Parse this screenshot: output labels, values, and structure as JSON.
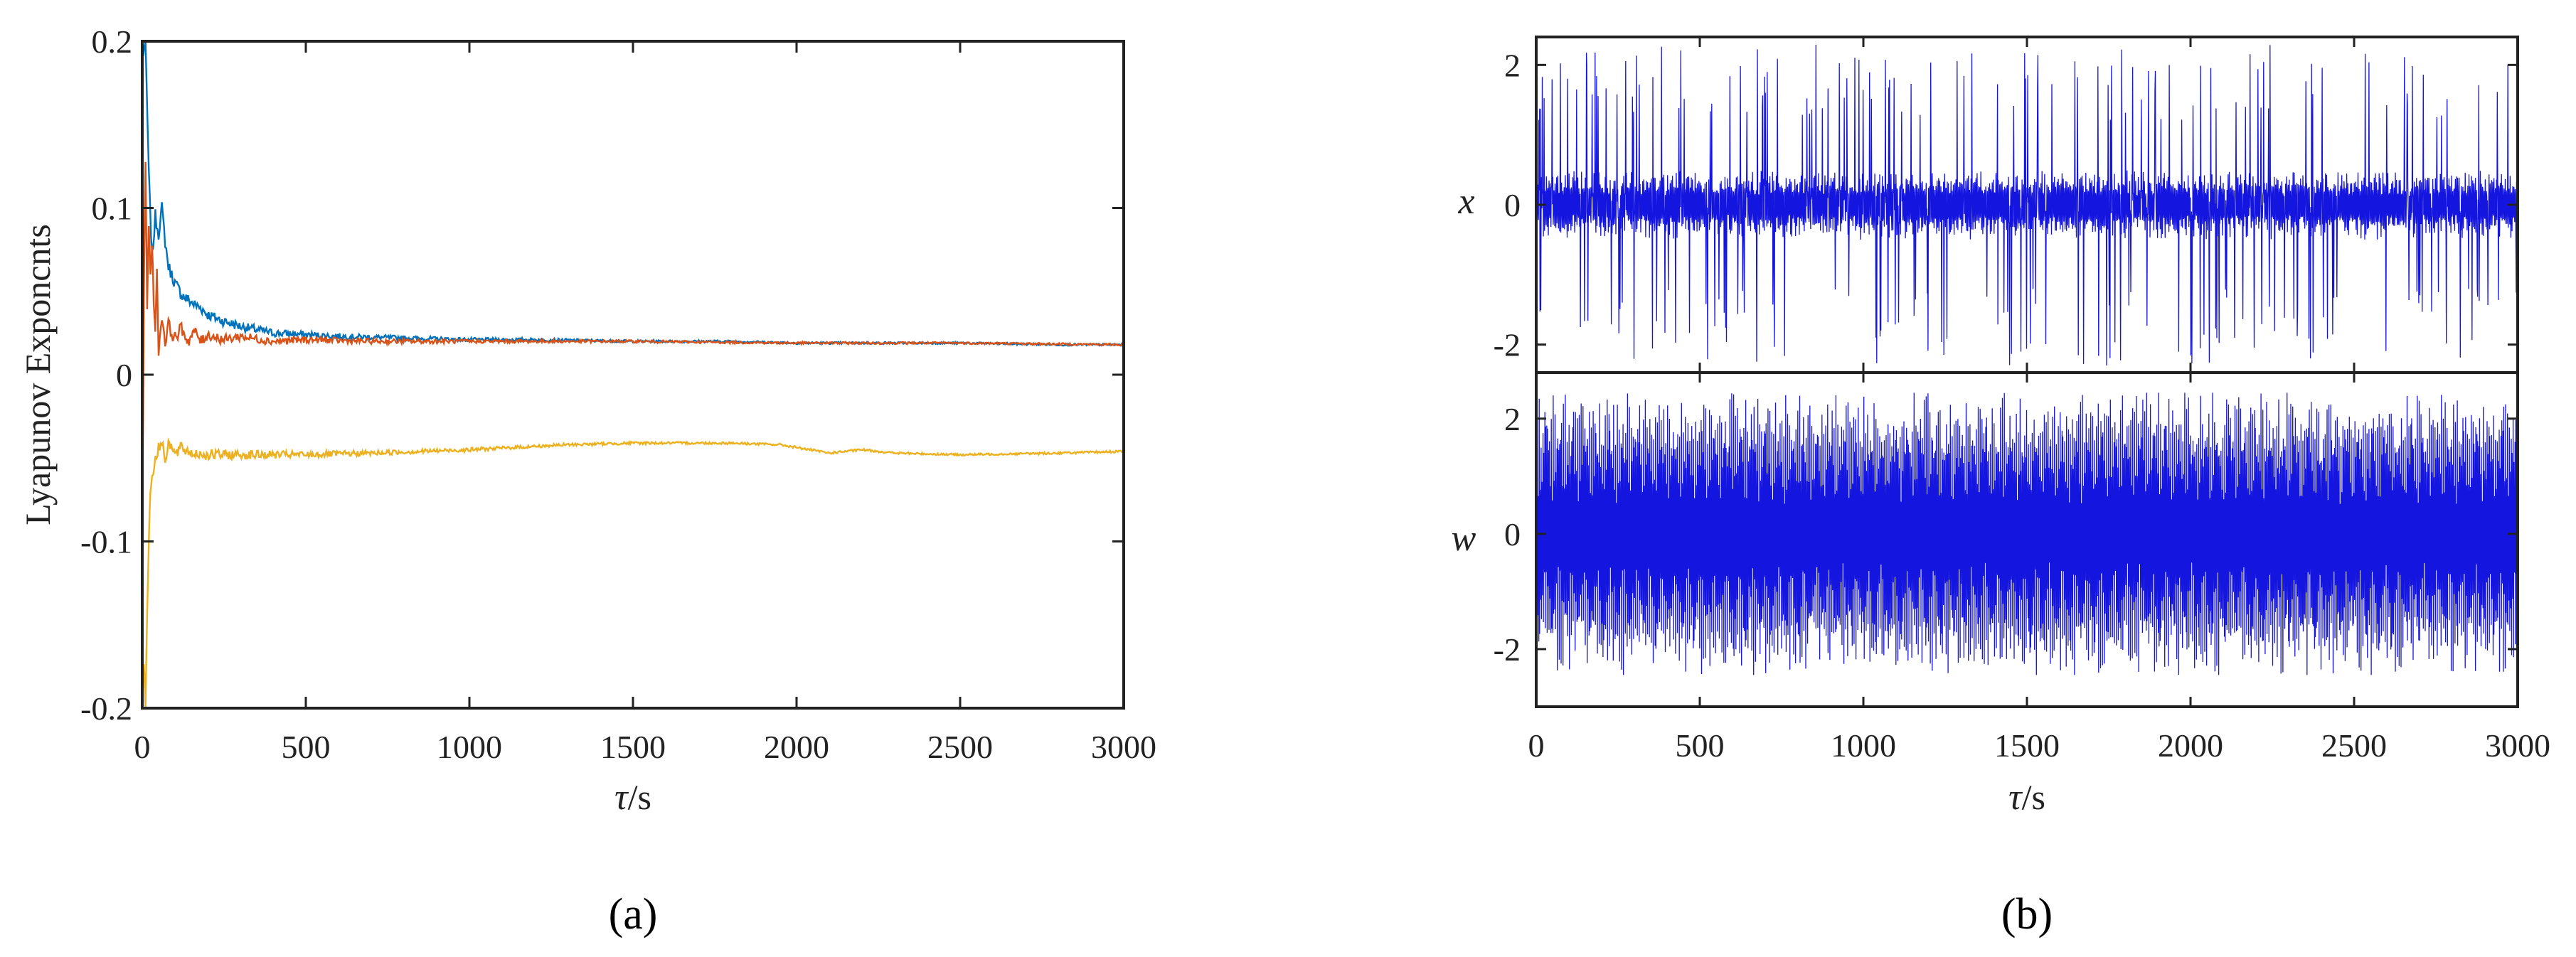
{
  "chart_data": [
    {
      "panel": "a",
      "caption": "(a)",
      "type": "line",
      "xlabel_prefix": "τ",
      "xlabel_suffix": "/s",
      "ylabel": "Lyapunov Exponcnts",
      "xlim": [
        0,
        3000
      ],
      "ylim": [
        -0.2,
        0.2
      ],
      "xticks": [
        "0",
        "500",
        "1000",
        "1500",
        "2000",
        "2500",
        "3000"
      ],
      "xtick_values": [
        0,
        500,
        1000,
        1500,
        2000,
        2500,
        3000
      ],
      "yticks": [
        "0.2",
        "0.1",
        "0",
        "-0.1",
        "-0.2"
      ],
      "ytick_values": [
        0.2,
        0.1,
        0,
        -0.1,
        -0.2
      ],
      "grid": false,
      "series": [
        {
          "color": "#0072BD",
          "x": [
            0,
            10,
            20,
            30,
            40,
            50,
            60,
            70,
            80,
            90,
            100,
            120,
            140,
            160,
            180,
            200,
            250,
            300,
            350,
            400,
            500,
            600,
            800,
            1000,
            1200,
            1500,
            1800,
            2000,
            2200,
            2500,
            2800,
            3000
          ],
          "y": [
            0.19,
            0.2,
            0.12,
            0.07,
            0.095,
            0.085,
            0.1,
            0.08,
            0.065,
            0.06,
            0.055,
            0.048,
            0.045,
            0.042,
            0.04,
            0.036,
            0.032,
            0.029,
            0.027,
            0.025,
            0.024,
            0.023,
            0.022,
            0.021,
            0.021,
            0.02,
            0.02,
            0.019,
            0.019,
            0.019,
            0.018,
            0.018
          ]
        },
        {
          "color": "#D95319",
          "x": [
            0,
            5,
            10,
            15,
            20,
            25,
            30,
            35,
            40,
            45,
            50,
            60,
            70,
            80,
            90,
            100,
            120,
            140,
            160,
            180,
            200,
            250,
            300,
            400,
            500,
            700,
            1000,
            1500,
            2000,
            2500,
            3000
          ],
          "y": [
            -0.1,
            0.05,
            0.13,
            0.04,
            0.09,
            0.06,
            0.08,
            0.045,
            0.03,
            0.06,
            0.015,
            0.035,
            0.02,
            0.03,
            0.025,
            0.022,
            0.028,
            0.02,
            0.026,
            0.02,
            0.024,
            0.021,
            0.023,
            0.02,
            0.021,
            0.02,
            0.02,
            0.02,
            0.019,
            0.019,
            0.018
          ]
        },
        {
          "color": "#EDB120",
          "x": [
            0,
            5,
            10,
            15,
            20,
            25,
            30,
            40,
            50,
            60,
            70,
            80,
            100,
            120,
            150,
            200,
            300,
            500,
            700,
            1000,
            1300,
            1500,
            1800,
            1950,
            2100,
            2200,
            2300,
            2500,
            2800,
            3000
          ],
          "y": [
            -0.2,
            -0.17,
            -0.2,
            -0.14,
            -0.1,
            -0.07,
            -0.06,
            -0.05,
            -0.045,
            -0.04,
            -0.05,
            -0.04,
            -0.048,
            -0.044,
            -0.047,
            -0.048,
            -0.048,
            -0.048,
            -0.047,
            -0.045,
            -0.042,
            -0.041,
            -0.041,
            -0.042,
            -0.047,
            -0.045,
            -0.047,
            -0.048,
            -0.047,
            -0.046
          ]
        }
      ]
    },
    {
      "panel": "b",
      "caption": "(b)",
      "type": "line",
      "xlabel_prefix": "τ",
      "xlabel_suffix": "/s",
      "xlim": [
        0,
        3000
      ],
      "xticks": [
        "0",
        "500",
        "1000",
        "1500",
        "2000",
        "2500",
        "3000"
      ],
      "xtick_values": [
        0,
        500,
        1000,
        1500,
        2000,
        2500,
        3000
      ],
      "grid": false,
      "subplots": [
        {
          "ylabel": "x",
          "ylim": [
            -2.4,
            2.4
          ],
          "yticks": [
            "2",
            "0",
            "-2"
          ],
          "ytick_values": [
            2,
            0,
            -2
          ],
          "color": "#1515E0",
          "signal": "chaotic oscillation, mostly within ±0.5 with frequent spikes up to about ±2.3",
          "core_amplitude": 0.5,
          "spike_amplitude": 2.3
        },
        {
          "ylabel": "w",
          "ylim": [
            -3.0,
            2.8
          ],
          "yticks": [
            "2",
            "0",
            "-2"
          ],
          "ytick_values": [
            2,
            0,
            -2
          ],
          "color": "#1515E0",
          "signal": "dense oscillation filling roughly -2.4 to 2.5",
          "core_amplitude": 2.0,
          "spike_amplitude": 2.45
        }
      ]
    }
  ]
}
